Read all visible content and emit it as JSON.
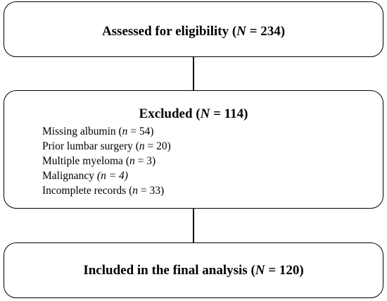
{
  "assessed": {
    "prefix": "Assessed for eligibility (",
    "var": "N",
    "suffix": " = 234)"
  },
  "excluded": {
    "header": {
      "prefix": "Excluded (",
      "var": "N",
      "suffix": " = 114)"
    },
    "reasons": [
      {
        "label": "Missing albumin (",
        "var": "n",
        "suffix": " = 54)"
      },
      {
        "label": "Prior lumbar surgery (",
        "var": "n",
        "suffix": " = 20)"
      },
      {
        "label": "Multiple myeloma (",
        "var": "n",
        "suffix": " = 3)"
      },
      {
        "label": "Malignancy ",
        "paren": "(",
        "var": "n",
        "suffix": " = 4)"
      },
      {
        "label": "Incomplete records (",
        "var": "n",
        "suffix": " = 33)"
      }
    ]
  },
  "included": {
    "prefix": "Included in the final analysis (",
    "var": "N",
    "suffix": " = 120)"
  }
}
